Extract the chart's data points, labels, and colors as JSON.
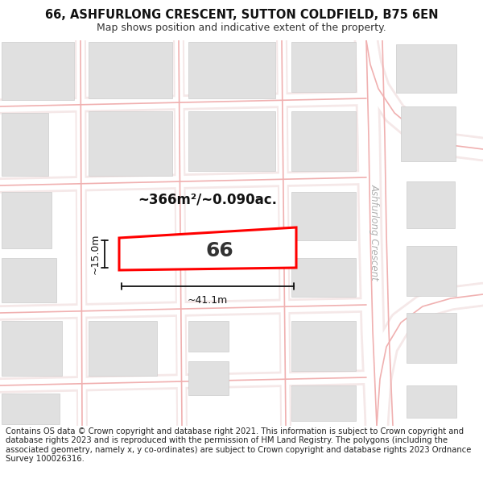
{
  "title_line1": "66, ASHFURLONG CRESCENT, SUTTON COLDFIELD, B75 6EN",
  "title_line2": "Map shows position and indicative extent of the property.",
  "footer_text": "Contains OS data © Crown copyright and database right 2021. This information is subject to Crown copyright and database rights 2023 and is reproduced with the permission of HM Land Registry. The polygons (including the associated geometry, namely x, y co-ordinates) are subject to Crown copyright and database rights 2023 Ordnance Survey 100026316.",
  "bg_color": "#ffffff",
  "map_bg_color": "#f9f9f9",
  "road_line_color": "#f0b0b0",
  "road_fill_color": "#ffffff",
  "building_color": "#e0e0e0",
  "building_edge_color": "#cccccc",
  "highlight_color": "#ff0000",
  "dim_color": "#111111",
  "street_label_color": "#b0b0b0",
  "area_text": "~366m²/~0.090ac.",
  "number_text": "66",
  "width_text": "~41.1m",
  "height_text": "~15.0m",
  "street_label": "Ashfurlong Crescent",
  "title_fontsize": 10.5,
  "subtitle_fontsize": 9,
  "footer_fontsize": 7.2,
  "area_fontsize": 12,
  "number_fontsize": 18,
  "dim_fontsize": 9
}
